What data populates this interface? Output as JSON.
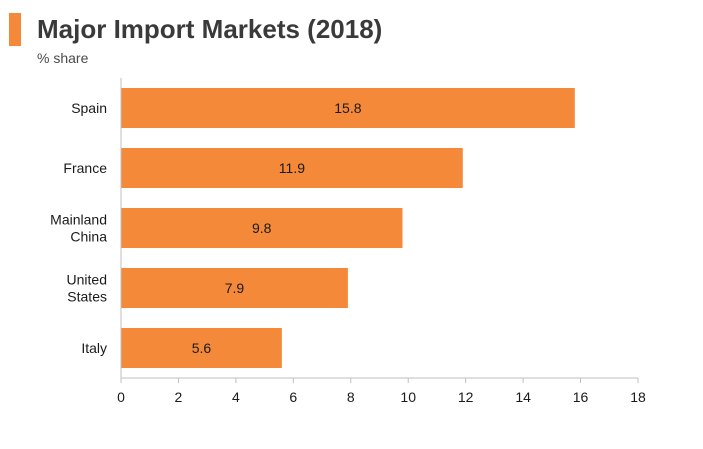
{
  "header": {
    "title": "Major Import Markets (2018)",
    "subtitle": "% share"
  },
  "colors": {
    "accent": "#f5893a",
    "bar": "#f5893a",
    "axis": "#bfbfbf",
    "text": "#1a1a1a"
  },
  "chart_data": {
    "type": "bar",
    "orientation": "horizontal",
    "title": "Major Import Markets (2018)",
    "subtitle": "% share",
    "categories": [
      [
        "Spain"
      ],
      [
        "France"
      ],
      [
        "Mainland",
        "China"
      ],
      [
        "United",
        "States"
      ],
      [
        "Italy"
      ]
    ],
    "values": [
      15.8,
      11.9,
      9.8,
      7.9,
      5.6
    ],
    "value_labels": [
      "15.8",
      "11.9",
      "9.8",
      "7.9",
      "5.6"
    ],
    "xlim": [
      0,
      18
    ],
    "xticks": [
      0,
      2,
      4,
      6,
      8,
      10,
      12,
      14,
      16,
      18
    ],
    "grid": false,
    "legend": "none"
  }
}
